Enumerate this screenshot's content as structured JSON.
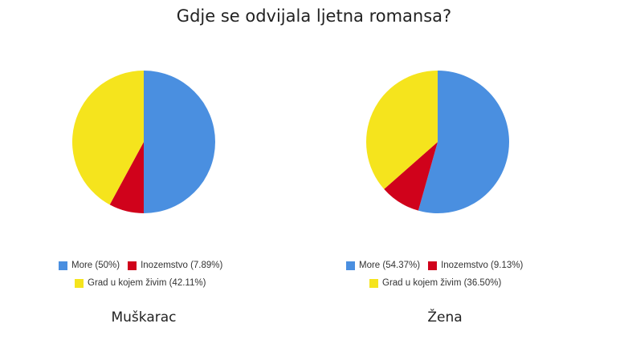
{
  "title": "Gdje se odvijala ljetna romansa?",
  "colors": {
    "More": "#4a8fe0",
    "Inozemstvo": "#d0021b",
    "Grad u kojem živim": "#f5e41d"
  },
  "chart_data": [
    {
      "type": "pie",
      "caption": "Muškarac",
      "slices": [
        {
          "label": "More",
          "value": 50,
          "legend": "More (50%)"
        },
        {
          "label": "Inozemstvo",
          "value": 7.89,
          "legend": "Inozemstvo (7.89%)"
        },
        {
          "label": "Grad u kojem živim",
          "value": 42.11,
          "legend": "Grad u kojem živim (42.11%)"
        }
      ]
    },
    {
      "type": "pie",
      "caption": "Žena",
      "slices": [
        {
          "label": "More",
          "value": 54.37,
          "legend": "More (54.37%)"
        },
        {
          "label": "Inozemstvo",
          "value": 9.13,
          "legend": "Inozemstvo (9.13%)"
        },
        {
          "label": "Grad u kojem živim",
          "value": 36.5,
          "legend": "Grad u kojem živim (36.50%)"
        }
      ]
    }
  ]
}
